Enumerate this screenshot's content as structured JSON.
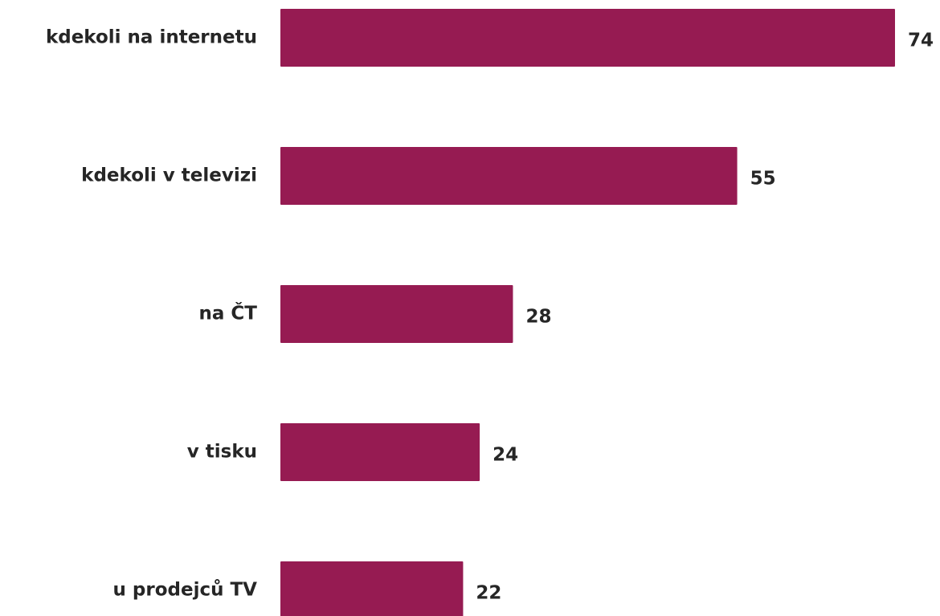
{
  "chart_data": {
    "type": "bar",
    "orientation": "horizontal",
    "categories": [
      "kdekoli na internetu",
      "kdekoli v televizi",
      "na ČT",
      "v tisku",
      "u prodejců TV"
    ],
    "values": [
      74,
      55,
      28,
      24,
      22
    ],
    "color": "#961b52",
    "xlim": [
      0,
      74
    ]
  }
}
